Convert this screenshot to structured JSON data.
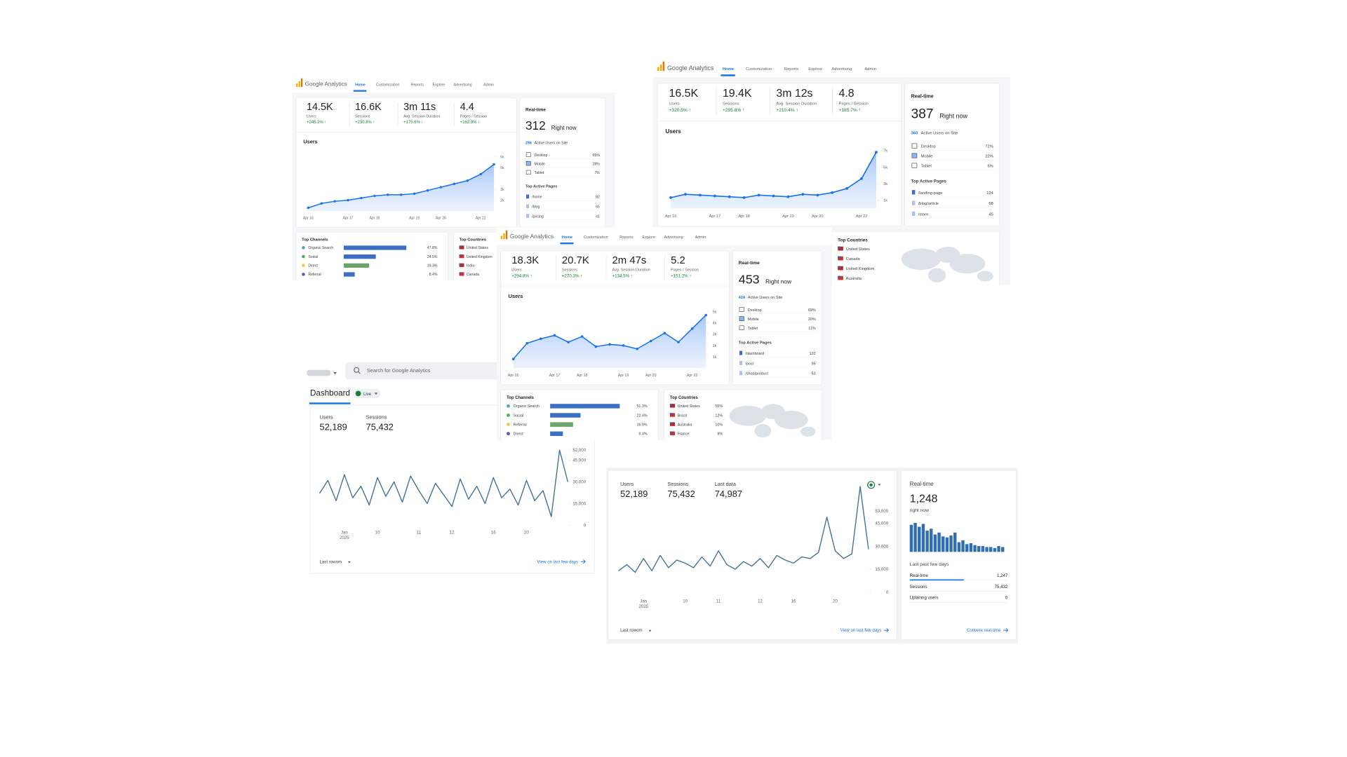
{
  "panels": {
    "ga": [
      {
        "brand": "Google Analytics",
        "nav": [
          "Home",
          "Customization",
          "Reports",
          "Explore",
          "Advertising",
          "Admin"
        ],
        "kpis": [
          {
            "value": "14.5K",
            "label": "Users",
            "change": "+245.2% ↑"
          },
          {
            "value": "16.6K",
            "label": "Sessions",
            "change": "+230.8% ↑"
          },
          {
            "value": "3m 11s",
            "label": "Avg. Session Duration",
            "change": "+175.6% ↑"
          },
          {
            "value": "4.4",
            "label": "Pages / Session",
            "change": "+162.9% ↑"
          }
        ],
        "chart": {
          "title": "Users",
          "categories": [
            "Apr 16",
            null,
            null,
            "Apr 17",
            null,
            "Apr 18",
            null,
            null,
            "Apr 19",
            null,
            "Apr 20",
            null,
            null,
            "Apr 22",
            null
          ],
          "values": [
            1300,
            1700,
            1900,
            2000,
            2200,
            2400,
            2500,
            2500,
            2600,
            2900,
            3200,
            3500,
            3800,
            4400,
            5300
          ],
          "ylim": [
            1000,
            6500
          ],
          "yticks": [
            {
              "value": 2000,
              "label": "2k"
            },
            {
              "value": 3000,
              "label": "3k"
            },
            {
              "value": 5000,
              "label": "5k"
            },
            {
              "value": 6000,
              "label": "6k"
            }
          ],
          "color": "#1a73e8"
        },
        "realtime": {
          "title": "Real-time",
          "value": "312",
          "caption": "Right now",
          "active_count": "296",
          "active_text": "Active Users on Site",
          "devices": [
            {
              "name": "Desktop",
              "share": "65%"
            },
            {
              "name": "Mobile",
              "share": "28%"
            },
            {
              "name": "Tablet",
              "share": "7%"
            }
          ],
          "pages_title": "Top Active Pages",
          "pages": [
            {
              "path": "/home",
              "count": "82"
            },
            {
              "path": "/blog",
              "count": "65"
            },
            {
              "path": "/pricing",
              "count": "41"
            }
          ]
        },
        "channels": {
          "title": "Top Channels",
          "names": [
            "Organic Search",
            "Social",
            "Direct",
            "Referral"
          ],
          "values": [
            47.8,
            24.5,
            19.3,
            8.4
          ],
          "value_labels": [
            "47.8%",
            "24.5%",
            "19.3%",
            "8.4%"
          ],
          "colors": [
            "#3b6fc4",
            "#3b6fc4",
            "#6aa56a",
            "#3b6fc4"
          ],
          "dot_colors": [
            "#4fa3c7",
            "#4caf50",
            "#f4c542",
            "#6c4fc4"
          ]
        },
        "countries": {
          "title": "Top Countries",
          "names": [
            "United States",
            "United Kingdom",
            "India",
            "Canada"
          ]
        }
      },
      {
        "brand": "Google Analytics",
        "nav": [
          "Home",
          "Customization",
          "Reports",
          "Explore",
          "Advertising",
          "Admin"
        ],
        "kpis": [
          {
            "value": "16.5K",
            "label": "Users",
            "change": "+320.5% ↑"
          },
          {
            "value": "19.4K",
            "label": "Sessions",
            "change": "+295.8% ↑"
          },
          {
            "value": "3m 12s",
            "label": "Avg. Session Duration",
            "change": "+210.4% ↑"
          },
          {
            "value": "4.8",
            "label": "Pages / Session",
            "change": "+185.7% ↑"
          }
        ],
        "chart": {
          "title": "Users",
          "categories": [
            "Apr 16",
            null,
            null,
            "Apr 17",
            null,
            "Apr 18",
            null,
            null,
            "Apr 19",
            null,
            "Apr 20",
            null,
            null,
            "Apr 22",
            null
          ],
          "values": [
            1300,
            1700,
            1600,
            1500,
            1400,
            1300,
            1600,
            1500,
            1400,
            1700,
            1600,
            1900,
            2400,
            3600,
            6800
          ],
          "ylim": [
            0,
            8000
          ],
          "yticks": [
            {
              "value": 1000,
              "label": "1k"
            },
            {
              "value": 3000,
              "label": "3k"
            },
            {
              "value": 5000,
              "label": "5k"
            },
            {
              "value": 7000,
              "label": "7k"
            }
          ],
          "color": "#1a73e8"
        },
        "realtime": {
          "title": "Real-time",
          "value": "387",
          "caption": "Right now",
          "active_count": "360",
          "active_text": "Active Users on Site",
          "devices": [
            {
              "name": "Desktop",
              "share": "72%"
            },
            {
              "name": "Mobile",
              "share": "22%"
            },
            {
              "name": "Tablet",
              "share": "6%"
            }
          ],
          "pages_title": "Top Active Pages",
          "pages": [
            {
              "path": "/landing-page",
              "count": "124"
            },
            {
              "path": "/blog/article",
              "count": "68"
            },
            {
              "path": "/store",
              "count": "45"
            }
          ]
        },
        "countries": {
          "title": "Top Countries",
          "names": [
            "United States",
            "Canada",
            "United Kingdom",
            "Australia"
          ]
        }
      },
      {
        "brand": "Google Analytics",
        "nav": [
          "Home",
          "Customization",
          "Reports",
          "Explore",
          "Advertising",
          "Admin"
        ],
        "kpis": [
          {
            "value": "18.3K",
            "label": "Users",
            "change": "+294.8% ↑"
          },
          {
            "value": "20.7K",
            "label": "Sessions",
            "change": "+270.3% ↑"
          },
          {
            "value": "2m 47s",
            "label": "Avg. Session Duration",
            "change": "+134.5% ↑"
          },
          {
            "value": "5.2",
            "label": "Pages / Session",
            "change": "+151.2% ↑"
          }
        ],
        "chart": {
          "title": "Users",
          "categories": [
            "Apr 16",
            null,
            null,
            "Apr 17",
            null,
            "Apr 18",
            null,
            null,
            "Apr 19",
            null,
            "Apr 20",
            null,
            null,
            "Apr 22",
            null
          ],
          "values": [
            800,
            2200,
            2600,
            2900,
            2300,
            2800,
            1900,
            2100,
            2000,
            1700,
            2400,
            3100,
            2300,
            3500,
            4700
          ],
          "ylim": [
            0,
            5500
          ],
          "yticks": [
            {
              "value": 1000,
              "label": "1k"
            },
            {
              "value": 2000,
              "label": "2k"
            },
            {
              "value": 3000,
              "label": "3k"
            },
            {
              "value": 4000,
              "label": "4k"
            },
            {
              "value": 5000,
              "label": "5k"
            }
          ],
          "color": "#1a73e8"
        },
        "realtime": {
          "title": "Real-time",
          "value": "453",
          "caption": "Right now",
          "active_count": "424",
          "active_text": "Active Users on Site",
          "devices": [
            {
              "name": "Desktop",
              "share": "69%"
            },
            {
              "name": "Mobile",
              "share": "20%"
            },
            {
              "name": "Tablet",
              "share": "11%"
            }
          ],
          "pages_title": "Top Active Pages",
          "pages": [
            {
              "path": "/dashboard",
              "count": "132"
            },
            {
              "path": "/post",
              "count": "95"
            },
            {
              "path": "/shop/product",
              "count": "53"
            }
          ]
        },
        "channels": {
          "title": "Top Channels",
          "names": [
            "Organic Search",
            "Social",
            "Referral",
            "Direct"
          ],
          "values": [
            51.3,
            22.4,
            16.9,
            9.4
          ],
          "value_labels": [
            "51.3%",
            "22.4%",
            "16.9%",
            "9.4%"
          ],
          "colors": [
            "#3b6fc4",
            "#3b6fc4",
            "#6aa56a",
            "#3b6fc4"
          ],
          "dot_colors": [
            "#4fa3c7",
            "#4caf50",
            "#f4c542",
            "#6c4fc4"
          ]
        },
        "countries": {
          "title": "Top Countries",
          "names": [
            "United States",
            "Brazil",
            "Australia",
            "France"
          ],
          "shares": [
            "55%",
            "12%",
            "10%",
            "9%"
          ]
        }
      }
    ],
    "dashboard": {
      "search": "Search for Google Analytics",
      "title": "Dashboard",
      "badge": "Live",
      "kpis": [
        {
          "label": "Users",
          "value": "52,189"
        },
        {
          "label": "Sessions",
          "value": "75,432"
        }
      ],
      "chart": {
        "categories": [
          null,
          null,
          null,
          "Jan",
          null,
          null,
          null,
          "10",
          null,
          null,
          null,
          null,
          "11",
          null,
          null,
          null,
          "12",
          null,
          null,
          null,
          null,
          "16",
          null,
          null,
          null,
          "20",
          null,
          null,
          null,
          null,
          null
        ],
        "year_label": "2025",
        "values": [
          22000,
          31000,
          17000,
          35000,
          19000,
          27000,
          14000,
          33000,
          20000,
          30000,
          16000,
          34000,
          24000,
          15000,
          29000,
          21000,
          13000,
          32000,
          18000,
          27000,
          15000,
          33000,
          19000,
          25000,
          14000,
          31000,
          17000,
          24000,
          6000,
          52000,
          30000
        ],
        "ylim": [
          0,
          54000
        ],
        "yticks": [
          0,
          {
            "value": 15000,
            "label": "15,000"
          },
          {
            "value": 30000,
            "label": "30,000"
          },
          {
            "value": 45000,
            "label": "45,000"
          },
          {
            "value": 52000,
            "label": "52,000"
          }
        ],
        "color": "#3d6f94"
      },
      "footer_left": "Last rowom",
      "footer_right": "View on last few days"
    },
    "overview": {
      "kpis": [
        {
          "label": "Users",
          "value": "52,189"
        },
        {
          "label": "Sessions",
          "value": "75,432"
        },
        {
          "label": "Last data",
          "value": "74,987"
        }
      ],
      "chart": {
        "categories": [
          null,
          null,
          null,
          "Jan",
          null,
          null,
          null,
          null,
          "10",
          null,
          null,
          null,
          "11",
          null,
          null,
          null,
          null,
          "12",
          null,
          null,
          null,
          "16",
          null,
          null,
          null,
          null,
          "20",
          null,
          null,
          null,
          null
        ],
        "year_label": "2025",
        "values": [
          14000,
          18000,
          13000,
          22000,
          14000,
          24000,
          16000,
          21000,
          19000,
          16000,
          23000,
          17000,
          27000,
          18000,
          15000,
          20000,
          17000,
          22000,
          16000,
          24000,
          21000,
          19000,
          23000,
          22000,
          26000,
          49000,
          27000,
          22000,
          25000,
          69000,
          28000
        ],
        "ylim": [
          0,
          70000
        ],
        "yticks": [
          0,
          {
            "value": 15000,
            "label": "15,000"
          },
          {
            "value": 30000,
            "label": "30,000"
          },
          {
            "value": 45000,
            "label": "45,000"
          },
          {
            "value": 53000,
            "label": "53,000"
          }
        ],
        "color": "#3d6f94"
      },
      "footer_left": "Last rowom",
      "footer_right": "View on last few days",
      "realtime": {
        "title": "Real-time",
        "value": "1,248",
        "caption": "right now",
        "bars": {
          "values": [
            28,
            30,
            26,
            29,
            22,
            24,
            18,
            20,
            16,
            15,
            17,
            20,
            10,
            12,
            8,
            9,
            7,
            6,
            6,
            5,
            5,
            4,
            6,
            5
          ],
          "ylim": [
            0,
            32
          ],
          "color": "#2f6db5"
        },
        "period": "Last past few days",
        "rows": [
          {
            "name": "Real-time",
            "value": "1,247"
          },
          {
            "name": "Sessions",
            "value": "75,432"
          },
          {
            "name": "Uplaning users",
            "value": "0"
          }
        ],
        "link": "Convere real-time"
      }
    }
  }
}
